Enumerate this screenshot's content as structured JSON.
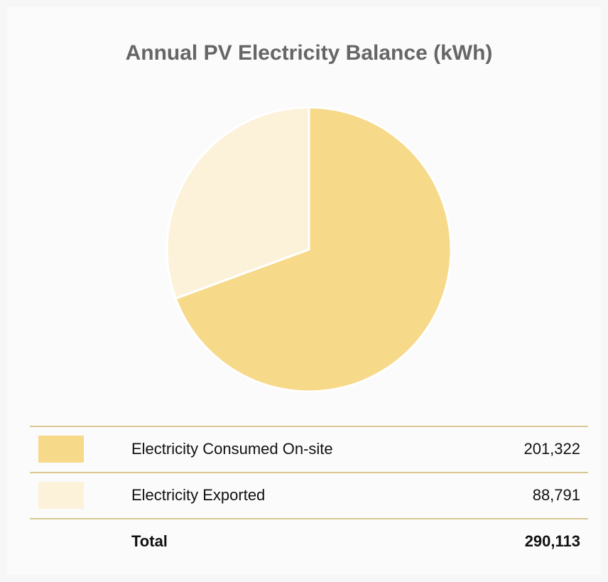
{
  "chart_data": {
    "type": "pie",
    "title": "Annual PV Electricity Balance (kWh)",
    "categories": [
      "Electricity Consumed On-site",
      "Electricity Exported"
    ],
    "values": [
      201322,
      88791
    ],
    "value_labels": [
      "201,322",
      "88,791"
    ],
    "colors": [
      "#f7d98a",
      "#fcf2da"
    ],
    "total": {
      "label": "Total",
      "value": 290113,
      "value_label": "290,113"
    }
  }
}
